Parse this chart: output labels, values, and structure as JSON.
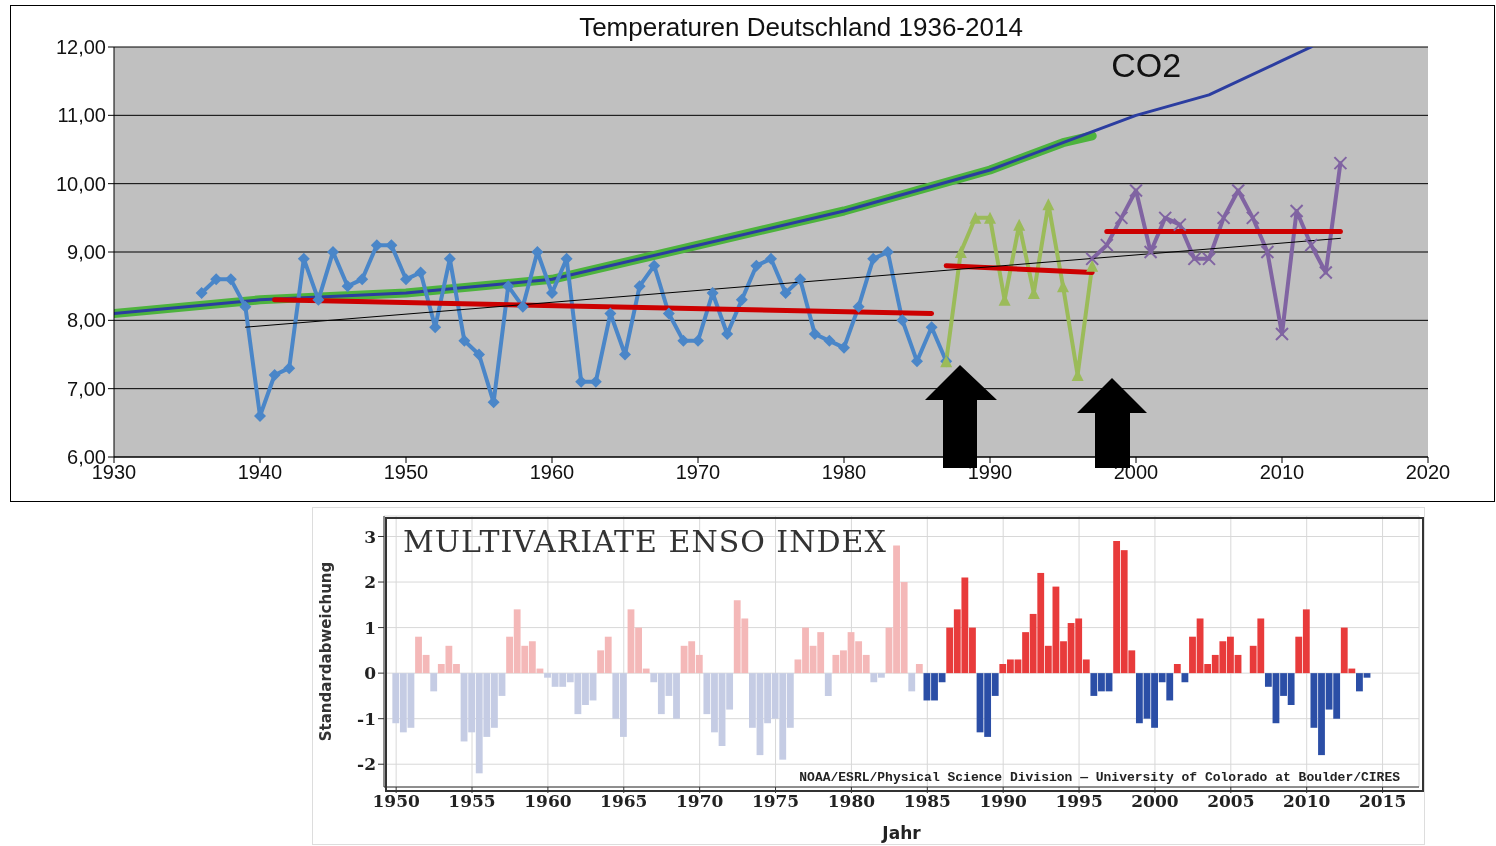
{
  "chart_data": [
    {
      "type": "line",
      "title": "Temperaturen Deutschland 1936-2014",
      "xlim": [
        1930,
        2020
      ],
      "xticks": [
        1930,
        1940,
        1950,
        1960,
        1970,
        1980,
        1990,
        2000,
        2010,
        2020
      ],
      "ylim": [
        6,
        12
      ],
      "yticks": [
        {
          "value": 6,
          "label": "6,00"
        },
        {
          "value": 7,
          "label": "7,00"
        },
        {
          "value": 8,
          "label": "8,00"
        },
        {
          "value": 9,
          "label": "9,00"
        },
        {
          "value": 10,
          "label": "10,00"
        },
        {
          "value": 11,
          "label": "11,00"
        },
        {
          "value": 12,
          "label": "12,00"
        }
      ],
      "grid": "y",
      "series": [
        {
          "color": "#4db33d",
          "marker": "none",
          "x": [
            1930,
            1940,
            1950,
            1960,
            1970,
            1980,
            1985,
            1990,
            1995,
            1997
          ],
          "values": [
            8.1,
            8.3,
            8.4,
            8.6,
            9.1,
            9.6,
            9.9,
            10.2,
            10.6,
            10.7
          ]
        },
        {
          "name": "CO2",
          "color": "#2b3da0",
          "marker": "none",
          "x": [
            1930,
            1940,
            1950,
            1960,
            1970,
            1980,
            1985,
            1990,
            1995,
            2000,
            2005,
            2010,
            2012
          ],
          "values": [
            8.1,
            8.3,
            8.4,
            8.6,
            9.1,
            9.6,
            9.9,
            10.2,
            10.6,
            11.0,
            11.3,
            11.8,
            12.0
          ]
        },
        {
          "color": "#4a86c8",
          "marker": "diamond",
          "x": [
            1936,
            1937,
            1938,
            1939,
            1940,
            1941,
            1942,
            1943,
            1944,
            1945,
            1946,
            1947,
            1948,
            1949,
            1950,
            1951,
            1952,
            1953,
            1954,
            1955,
            1956,
            1957,
            1958,
            1959,
            1960,
            1961,
            1962,
            1963,
            1964,
            1965,
            1966,
            1967,
            1968,
            1969,
            1970,
            1971,
            1972,
            1973,
            1974,
            1975,
            1976,
            1977,
            1978,
            1979,
            1980,
            1981,
            1982,
            1983,
            1984,
            1985,
            1986,
            1987
          ],
          "values": [
            8.4,
            8.6,
            8.6,
            8.2,
            6.6,
            7.2,
            7.3,
            8.9,
            8.3,
            9.0,
            8.5,
            8.6,
            9.1,
            9.1,
            8.6,
            8.7,
            7.9,
            8.9,
            7.7,
            7.5,
            6.8,
            8.5,
            8.2,
            9.0,
            8.4,
            8.9,
            7.1,
            7.1,
            8.1,
            7.5,
            8.5,
            8.8,
            8.1,
            7.7,
            7.7,
            8.4,
            7.8,
            8.3,
            8.8,
            8.9,
            8.4,
            8.6,
            7.8,
            7.7,
            7.6,
            8.2,
            8.9,
            9.0,
            8.0,
            7.4,
            7.9,
            7.4
          ]
        },
        {
          "color": "#9bbb59",
          "marker": "triangle",
          "x": [
            1987,
            1988,
            1989,
            1990,
            1991,
            1992,
            1993,
            1994,
            1995,
            1996,
            1997
          ],
          "values": [
            7.4,
            9.0,
            9.5,
            9.5,
            8.3,
            9.4,
            8.4,
            9.7,
            8.5,
            7.2,
            8.8
          ]
        },
        {
          "color": "#8064a2",
          "marker": "cross",
          "x": [
            1997,
            1998,
            1999,
            2000,
            2001,
            2002,
            2003,
            2004,
            2005,
            2006,
            2007,
            2008,
            2009,
            2010,
            2011,
            2012,
            2013,
            2014
          ],
          "values": [
            8.9,
            9.1,
            9.5,
            9.9,
            9.0,
            9.5,
            9.4,
            8.9,
            8.9,
            9.5,
            9.9,
            9.5,
            9.0,
            7.8,
            9.6,
            9.1,
            8.7,
            10.3
          ]
        },
        {
          "color": "#cc0000",
          "marker": "none",
          "x": [
            1941,
            1986
          ],
          "values": [
            8.3,
            8.1
          ]
        },
        {
          "color": "#cc0000",
          "marker": "none",
          "x": [
            1987,
            1997
          ],
          "values": [
            8.8,
            8.7
          ]
        },
        {
          "color": "#cc0000",
          "marker": "none",
          "x": [
            1998,
            2014
          ],
          "values": [
            9.3,
            9.3
          ]
        },
        {
          "color": "#000000",
          "marker": "none",
          "x": [
            1939,
            2014
          ],
          "values": [
            7.9,
            9.2
          ]
        }
      ]
    },
    {
      "type": "bar",
      "title": "MULTIVARIATE ENSO INDEX",
      "xlabel": "Jahr",
      "ylabel": "Standardabweichung",
      "annotations": [
        "NOAA/ESRL/Physical Science Division — University of Colorado at Boulder/CIRES"
      ],
      "xlim": [
        1949.2,
        2017.4
      ],
      "xticks": [
        1950,
        1955,
        1960,
        1965,
        1970,
        1975,
        1980,
        1985,
        1990,
        1995,
        2000,
        2005,
        2010,
        2015
      ],
      "ylim": [
        -2.5,
        3.45
      ],
      "yticks": [
        -2,
        -1,
        0,
        1,
        2,
        3
      ],
      "grid": true,
      "series": [
        {
          "color": "#f4b8b8",
          "x": [
            1951.5,
            1952.0,
            1953.0,
            1953.5,
            1954.0,
            1957.5,
            1958.0,
            1958.5,
            1959.0,
            1959.5,
            1963.5,
            1964.0,
            1965.5,
            1966.0,
            1966.5,
            1969.0,
            1969.5,
            1970.0,
            1972.5,
            1973.0,
            1976.5,
            1977.0,
            1977.5,
            1978.0,
            1979.0,
            1979.5,
            1980.0,
            1980.5,
            1981.0,
            1982.5,
            1983.0,
            1983.5,
            1984.5
          ],
          "values": [
            0.8,
            0.4,
            0.2,
            0.6,
            0.2,
            0.8,
            1.4,
            0.6,
            0.7,
            0.1,
            0.5,
            0.8,
            1.4,
            1.0,
            0.1,
            0.6,
            0.7,
            0.4,
            1.6,
            1.2,
            0.3,
            1.0,
            0.6,
            0.9,
            0.4,
            0.5,
            0.9,
            0.7,
            0.4,
            1.0,
            2.8,
            2.0,
            0.2
          ]
        },
        {
          "color": "#c5cce4",
          "x": [
            1950.0,
            1950.5,
            1951.0,
            1952.5,
            1954.5,
            1955.0,
            1955.5,
            1956.0,
            1956.5,
            1957.0,
            1960.0,
            1960.5,
            1961.0,
            1961.5,
            1962.0,
            1962.5,
            1963.0,
            1964.5,
            1965.0,
            1967.0,
            1967.5,
            1968.0,
            1968.5,
            1970.5,
            1971.0,
            1971.5,
            1972.0,
            1973.5,
            1974.0,
            1974.5,
            1975.0,
            1975.5,
            1976.0,
            1978.5,
            1981.5,
            1982.0,
            1984.0
          ],
          "values": [
            -1.1,
            -1.3,
            -1.2,
            -0.4,
            -1.5,
            -1.3,
            -2.2,
            -1.4,
            -1.2,
            -0.5,
            -0.1,
            -0.3,
            -0.3,
            -0.2,
            -0.9,
            -0.7,
            -0.6,
            -1.0,
            -1.4,
            -0.2,
            -0.9,
            -0.5,
            -1.0,
            -0.9,
            -1.3,
            -1.6,
            -0.8,
            -1.2,
            -1.8,
            -1.1,
            -1.0,
            -1.9,
            -1.2,
            -0.5,
            -0.2,
            -0.1,
            -0.4
          ]
        },
        {
          "color": "#e83b3b",
          "x": [
            1986.5,
            1987.0,
            1987.5,
            1988.0,
            1990.0,
            1990.5,
            1991.0,
            1991.5,
            1992.0,
            1992.5,
            1993.0,
            1993.5,
            1994.0,
            1994.5,
            1995.0,
            1995.5,
            1997.5,
            1998.0,
            1998.5,
            2001.5,
            2002.5,
            2003.0,
            2003.5,
            2004.0,
            2004.5,
            2005.0,
            2005.5,
            2006.5,
            2007.0,
            2009.5,
            2010.0,
            2012.5,
            2013.0
          ],
          "values": [
            1.0,
            1.4,
            2.1,
            1.0,
            0.2,
            0.3,
            0.3,
            0.9,
            1.3,
            2.2,
            0.6,
            1.9,
            0.7,
            1.1,
            1.2,
            0.3,
            2.9,
            2.7,
            0.5,
            0.2,
            0.8,
            1.2,
            0.2,
            0.4,
            0.7,
            0.8,
            0.4,
            0.6,
            1.2,
            0.8,
            1.4,
            1.0,
            0.1
          ]
        },
        {
          "color": "#2b4ea6",
          "x": [
            1985.0,
            1985.5,
            1986.0,
            1988.5,
            1989.0,
            1989.5,
            1996.0,
            1996.5,
            1997.0,
            1999.0,
            1999.5,
            2000.0,
            2000.5,
            2001.0,
            2002.0,
            2007.5,
            2008.0,
            2008.5,
            2009.0,
            2010.5,
            2011.0,
            2011.5,
            2012.0,
            2013.5,
            2014.0
          ],
          "values": [
            -0.6,
            -0.6,
            -0.2,
            -1.3,
            -1.4,
            -0.5,
            -0.5,
            -0.4,
            -0.4,
            -1.1,
            -1.0,
            -1.2,
            -0.2,
            -0.6,
            -0.2,
            -0.3,
            -1.1,
            -0.5,
            -0.7,
            -1.2,
            -1.8,
            -0.8,
            -1.0,
            -0.4,
            -0.1
          ]
        }
      ]
    }
  ]
}
